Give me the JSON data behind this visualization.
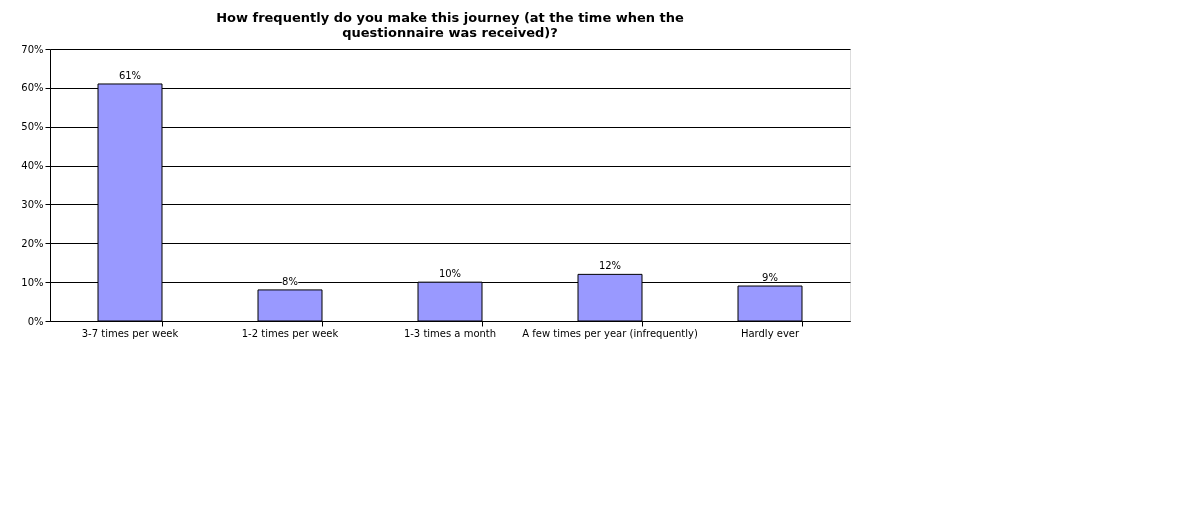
{
  "chart_data": {
    "type": "bar",
    "title": "How frequently do you make this journey (at the time when the\nquestionnaire was received)?",
    "categories": [
      "3-7 times per week",
      "1-2 times per week",
      "1-3 times a month",
      "A few times per year (infrequently)",
      "Hardly ever"
    ],
    "values": [
      61,
      8,
      10,
      12,
      9
    ],
    "value_labels": [
      "61%",
      "8%",
      "10%",
      "12%",
      "9%"
    ],
    "color": "#9999ff",
    "ylim": [
      0,
      70
    ],
    "yticks": [
      {
        "value": 0,
        "label": "0%"
      },
      {
        "value": 10,
        "label": "10%"
      },
      {
        "value": 20,
        "label": "20%"
      },
      {
        "value": 30,
        "label": "30%"
      },
      {
        "value": 40,
        "label": "40%"
      },
      {
        "value": 50,
        "label": "50%"
      },
      {
        "value": 60,
        "label": "60%"
      },
      {
        "value": 70,
        "label": "70%"
      }
    ],
    "grid": "y"
  }
}
